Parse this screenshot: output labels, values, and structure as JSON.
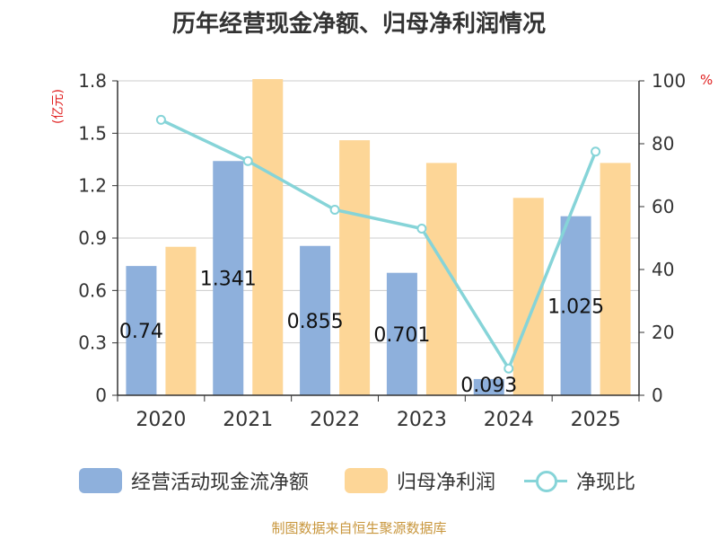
{
  "chart_data": {
    "type": "bar",
    "title": "历年经营现金净额、归母净利润情况",
    "categories": [
      "2020",
      "2021",
      "2022",
      "2023",
      "2024",
      "2025"
    ],
    "ylabel_left": "(亿元)",
    "ylabel_right": "%",
    "ylim_left": [
      0,
      1.8
    ],
    "ylim_right": [
      0,
      100
    ],
    "yticks_left": [
      "0",
      "0.3",
      "0.6",
      "0.9",
      "1.2",
      "1.5",
      "1.8"
    ],
    "yticks_right": [
      "0",
      "20",
      "40",
      "60",
      "80",
      "100"
    ],
    "series": [
      {
        "name": "经营活动现金流净额",
        "axis": "left",
        "kind": "bar",
        "color": "#8eb0dc",
        "values": [
          0.74,
          1.341,
          0.855,
          0.701,
          0.093,
          1.025
        ],
        "labels": [
          "0.74",
          "1.341",
          "0.855",
          "0.701",
          "0.093",
          "1.025"
        ]
      },
      {
        "name": "归母净利润",
        "axis": "left",
        "kind": "bar",
        "color": "#fdd697",
        "values": [
          0.85,
          1.81,
          1.46,
          1.33,
          1.13,
          1.33
        ]
      },
      {
        "name": "净现比",
        "axis": "right",
        "kind": "line",
        "color": "#86d4d8",
        "values": [
          87.6,
          74.5,
          59.0,
          53.0,
          8.5,
          77.5
        ]
      }
    ],
    "legend": [
      "经营活动现金流净额",
      "归母净利润",
      "净现比"
    ]
  },
  "footer": {
    "source": "制图数据来自恒生聚源数据库"
  }
}
